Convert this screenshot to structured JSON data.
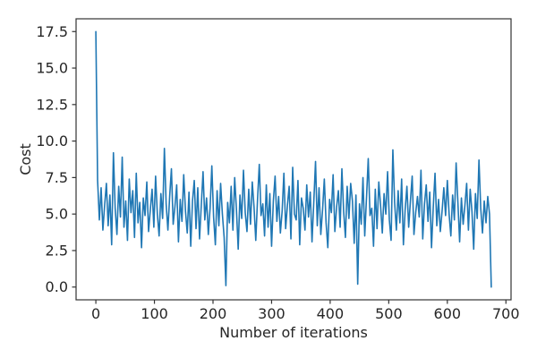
{
  "figure": {
    "background": "#ffffff",
    "spine_color": "#333333",
    "tick_color": "#333333",
    "text_color": "#262626"
  },
  "chart_data": {
    "type": "line",
    "title": "",
    "xlabel": "Number of iterations",
    "ylabel": "Cost",
    "legend": null,
    "grid": false,
    "line_color": "#1f77b4",
    "line_width": 1.6,
    "xlim": [
      -33.75,
      708.75
    ],
    "ylim": [
      -0.875,
      18.375
    ],
    "x_ticks": [
      0,
      100,
      200,
      300,
      400,
      500,
      600,
      700
    ],
    "x_tick_labels": [
      "0",
      "100",
      "200",
      "300",
      "400",
      "500",
      "600",
      "700"
    ],
    "y_ticks": [
      0,
      2.5,
      5,
      7.5,
      10,
      12.5,
      15,
      17.5
    ],
    "y_tick_labels": [
      "0.0",
      "2.5",
      "5.0",
      "7.5",
      "10.0",
      "12.5",
      "15.0",
      "17.5"
    ],
    "x_start": 0,
    "x_step": 3,
    "values": [
      17.5,
      7.3,
      4.6,
      6.8,
      3.9,
      5.6,
      7.1,
      4.2,
      6.3,
      2.9,
      9.2,
      5.4,
      3.6,
      6.9,
      4.8,
      8.9,
      4.1,
      5.9,
      3.2,
      7.4,
      5.1,
      6.6,
      3.4,
      7.8,
      4.4,
      5.8,
      2.7,
      6.1,
      4.9,
      7.2,
      3.8,
      5.3,
      6.7,
      4.1,
      7.6,
      5.0,
      3.5,
      6.4,
      4.7,
      9.5,
      5.7,
      3.9,
      6.2,
      8.1,
      4.3,
      5.5,
      7.0,
      3.1,
      6.0,
      4.5,
      7.7,
      5.2,
      3.7,
      6.5,
      2.8,
      5.9,
      7.3,
      4.0,
      6.8,
      3.3,
      5.6,
      7.9,
      4.6,
      6.1,
      3.6,
      5.4,
      8.3,
      4.8,
      2.9,
      6.6,
      4.2,
      7.1,
      5.0,
      3.4,
      0.1,
      5.8,
      4.4,
      6.9,
      3.9,
      7.5,
      5.3,
      2.6,
      6.3,
      4.7,
      8.0,
      5.1,
      3.8,
      6.7,
      4.3,
      7.2,
      5.5,
      3.2,
      6.0,
      8.4,
      4.9,
      5.7,
      3.5,
      7.0,
      4.1,
      6.4,
      2.8,
      5.9,
      7.6,
      4.5,
      6.2,
      3.7,
      5.2,
      7.8,
      4.0,
      5.6,
      6.9,
      3.3,
      8.2,
      5.0,
      4.6,
      7.3,
      2.9,
      6.1,
      5.4,
      3.9,
      7.0,
      4.8,
      6.5,
      3.1,
      5.8,
      8.6,
      4.2,
      6.8,
      3.6,
      5.3,
      7.4,
      4.4,
      2.7,
      6.0,
      5.1,
      7.7,
      3.8,
      5.5,
      6.6,
      4.1,
      8.1,
      5.2,
      3.4,
      6.9,
      4.7,
      7.1,
      5.9,
      3.0,
      6.3,
      0.2,
      5.7,
      4.3,
      7.5,
      3.5,
      6.1,
      8.8,
      4.9,
      5.4,
      2.8,
      6.7,
      4.0,
      7.2,
      5.6,
      3.7,
      6.4,
      5.0,
      7.9,
      4.6,
      3.2,
      9.4,
      5.8,
      3.9,
      6.6,
      4.4,
      7.4,
      2.9,
      5.3,
      6.9,
      4.1,
      5.9,
      7.6,
      3.6,
      5.1,
      6.2,
      4.8,
      8.0,
      3.3,
      5.7,
      7.0,
      4.5,
      6.5,
      2.7,
      5.5,
      7.8,
      4.2,
      6.0,
      3.8,
      5.2,
      6.8,
      4.9,
      7.3,
      5.0,
      3.5,
      6.3,
      4.6,
      8.5,
      5.8,
      3.1,
      6.1,
      4.3,
      5.6,
      7.1,
      3.9,
      6.7,
      5.2,
      2.6,
      6.4,
      4.7,
      8.7,
      5.4,
      3.7,
      5.9,
      4.4,
      6.2,
      5.0,
      0.0
    ]
  }
}
